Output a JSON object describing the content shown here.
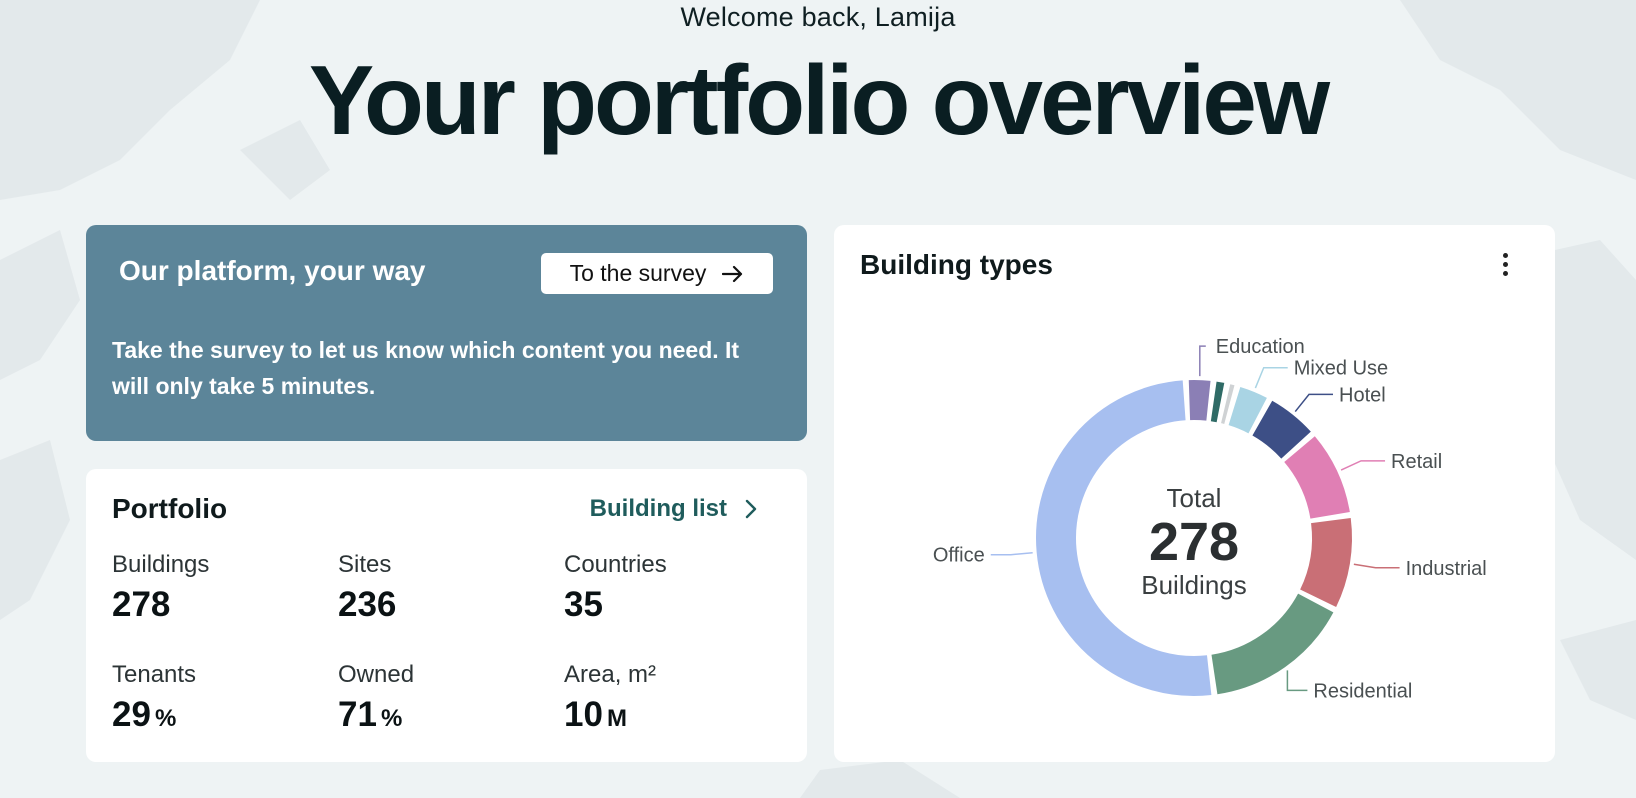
{
  "header": {
    "welcome": "Welcome back, Lamija",
    "title": "Your portfolio overview"
  },
  "survey": {
    "title": "Our platform, your way",
    "button_label": "To the survey",
    "text": "Take the survey to let us know which content you need. It will only take 5 minutes.",
    "background_color": "#5c8599"
  },
  "portfolio": {
    "title": "Portfolio",
    "link_label": "Building list",
    "stats": [
      {
        "label": "Buildings",
        "value": "278",
        "unit": ""
      },
      {
        "label": "Sites",
        "value": "236",
        "unit": ""
      },
      {
        "label": "Countries",
        "value": "35",
        "unit": ""
      },
      {
        "label": "Tenants",
        "value": "29",
        "unit": "%"
      },
      {
        "label": "Owned",
        "value": "71",
        "unit": "%"
      },
      {
        "label": "Area, m²",
        "value": "10",
        "unit": "M"
      }
    ]
  },
  "building_types": {
    "title": "Building types",
    "center_top": "Total",
    "center_value": "278",
    "center_bottom": "Buildings",
    "menu_icon": "kebab-menu-icon"
  },
  "chart_data": {
    "type": "pie",
    "title": "Building types",
    "total": 278,
    "categories": [
      "Education",
      "Mixed Use",
      "Hotel",
      "Retail",
      "Industrial",
      "Residential",
      "Office"
    ],
    "values": [
      8,
      10,
      16,
      26,
      28,
      44,
      146
    ],
    "colors": [
      "#8b7fb5",
      "#a9d4e4",
      "#3d4f86",
      "#e07fb4",
      "#c96f76",
      "#689a81",
      "#a7bff0"
    ],
    "extra_small_segments": [
      {
        "color": "#2f6b66",
        "value": 4
      },
      {
        "color": "#cfd2d4",
        "value": 3
      }
    ]
  }
}
